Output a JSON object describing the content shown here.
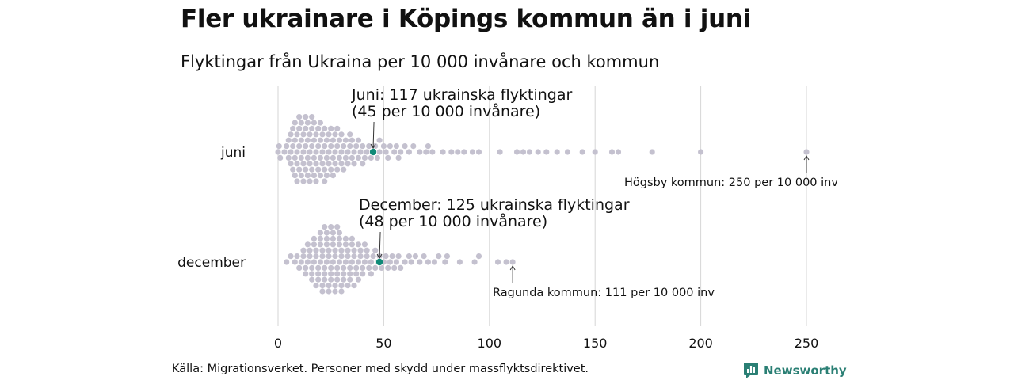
{
  "header": {
    "title": "Fler ukrainare i Köpings kommun än i juni",
    "subtitle": "Flyktingar från Ukraina per 10 000 invånare och kommun"
  },
  "footer": {
    "source": "Källa: Migrationsverket. Personer med skydd under massflyktsdirektivet.",
    "brand": "Newsworthy"
  },
  "colors": {
    "dot": "#c4c1cf",
    "highlight": "#0f8a78",
    "grid": "#d6d6d6",
    "brand": "#2a7f74"
  },
  "chart_data": {
    "type": "scatter",
    "subtype": "beeswarm",
    "x_ticks": [
      0,
      50,
      100,
      150,
      200,
      250
    ],
    "xlim": [
      0,
      250
    ],
    "grid": "vertical",
    "categories": [
      "juni",
      "december"
    ],
    "series": [
      {
        "category": "juni",
        "highlight": {
          "value": 45,
          "label_line1": "Juni: 117 ukrainska flyktingar",
          "label_line2": "(45 per 10 000 invånare)"
        },
        "extreme": {
          "value": 250,
          "label": "Högsby kommun: 250 per 10 000 inv"
        },
        "values": [
          0,
          0.5,
          1,
          3,
          4,
          5,
          5,
          6,
          6,
          6,
          7,
          7,
          7,
          8,
          8,
          8,
          8,
          9,
          9,
          9,
          9,
          10,
          10,
          10,
          10,
          11,
          11,
          11,
          11,
          12,
          12,
          12,
          12,
          13,
          13,
          13,
          13,
          14,
          14,
          14,
          14,
          15,
          15,
          15,
          15,
          16,
          16,
          16,
          16,
          17,
          17,
          17,
          17,
          18,
          18,
          18,
          18,
          19,
          19,
          19,
          20,
          20,
          20,
          20,
          21,
          21,
          21,
          22,
          22,
          22,
          22,
          23,
          23,
          23,
          24,
          24,
          24,
          25,
          25,
          25,
          26,
          26,
          26,
          27,
          27,
          27,
          28,
          28,
          28,
          29,
          29,
          30,
          30,
          30,
          31,
          31,
          32,
          32,
          33,
          33,
          34,
          34,
          35,
          35,
          36,
          36,
          37,
          38,
          38,
          39,
          40,
          40,
          41,
          42,
          43,
          44,
          45,
          46,
          47,
          48,
          48,
          50,
          51,
          52,
          53,
          55,
          56,
          57,
          58,
          60,
          62,
          64,
          67,
          70,
          71,
          73,
          78,
          82,
          85,
          88,
          92,
          95,
          105,
          113,
          116,
          119,
          123,
          127,
          132,
          137,
          144,
          150,
          158,
          161,
          177,
          200,
          250
        ]
      },
      {
        "category": "december",
        "highlight": {
          "value": 48,
          "label_line1": "December: 125 ukrainska flyktingar",
          "label_line2": "(48 per 10 000 invånare)"
        },
        "extreme": {
          "value": 111,
          "label": "Ragunda kommun: 111 per 10 000 inv"
        },
        "values": [
          4,
          6,
          8,
          9,
          10,
          11,
          12,
          12,
          13,
          13,
          14,
          14,
          15,
          15,
          16,
          16,
          16,
          17,
          17,
          17,
          18,
          18,
          18,
          19,
          19,
          19,
          20,
          20,
          20,
          20,
          21,
          21,
          21,
          21,
          22,
          22,
          22,
          22,
          23,
          23,
          23,
          23,
          24,
          24,
          24,
          24,
          25,
          25,
          25,
          25,
          26,
          26,
          26,
          26,
          27,
          27,
          27,
          27,
          28,
          28,
          28,
          28,
          29,
          29,
          29,
          29,
          30,
          30,
          30,
          30,
          31,
          31,
          31,
          32,
          32,
          32,
          33,
          33,
          33,
          34,
          34,
          34,
          35,
          35,
          35,
          36,
          36,
          36,
          37,
          37,
          38,
          38,
          38,
          39,
          39,
          40,
          40,
          41,
          41,
          42,
          42,
          43,
          44,
          44,
          45,
          46,
          46,
          47,
          48,
          49,
          50,
          51,
          52,
          53,
          54,
          55,
          56,
          57,
          58,
          60,
          62,
          63,
          65,
          67,
          69,
          71,
          74,
          76,
          79,
          80,
          86,
          93,
          95,
          104,
          108,
          111
        ]
      }
    ]
  }
}
